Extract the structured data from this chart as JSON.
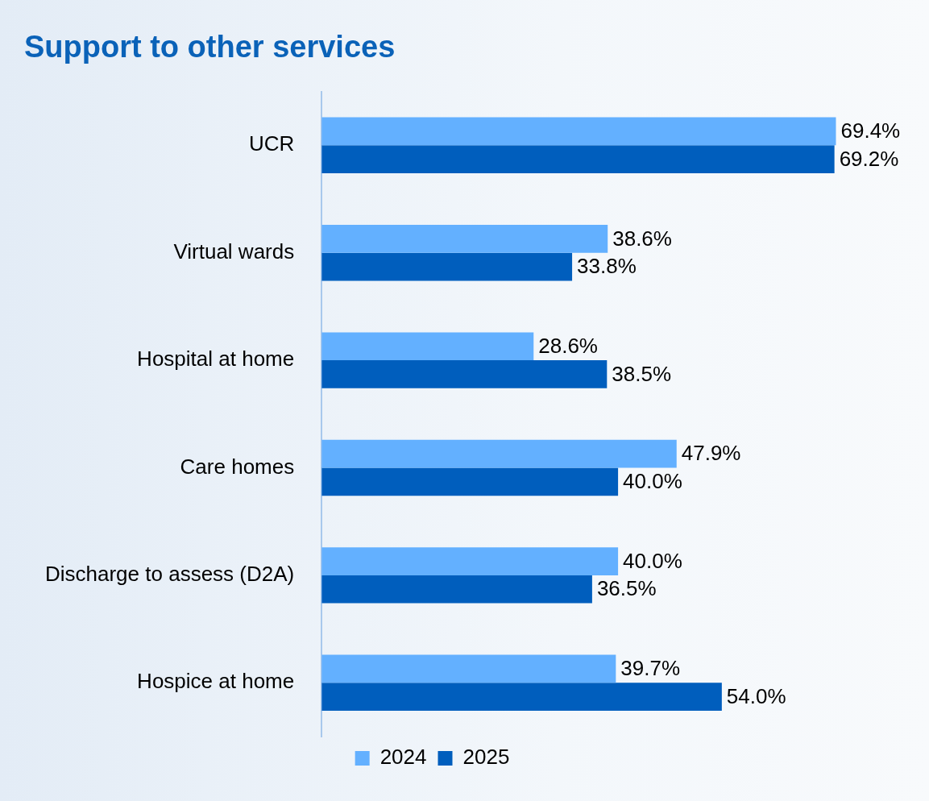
{
  "chart_data": {
    "type": "bar",
    "orientation": "horizontal",
    "title": "Support to other services",
    "tick_labels": "y",
    "categories": [
      "UCR",
      "Virtual wards",
      "Hospital at home",
      "Care homes",
      "Discharge to assess (D2A)",
      "Hospice at home"
    ],
    "series": [
      {
        "name": "2024",
        "color": "#63b0ff",
        "values": [
          69.4,
          38.6,
          28.6,
          47.9,
          40.0,
          39.7
        ],
        "value_labels": [
          "69.4%",
          "38.6%",
          "28.6%",
          "47.9%",
          "40.0%",
          "39.7%"
        ]
      },
      {
        "name": "2025",
        "color": "#005ebd",
        "values": [
          69.2,
          33.8,
          38.5,
          40.0,
          36.5,
          54.0
        ],
        "value_labels": [
          "69.2%",
          "33.8%",
          "38.5%",
          "40.0%",
          "36.5%",
          "54.0%"
        ]
      }
    ],
    "legend": "bottom"
  }
}
